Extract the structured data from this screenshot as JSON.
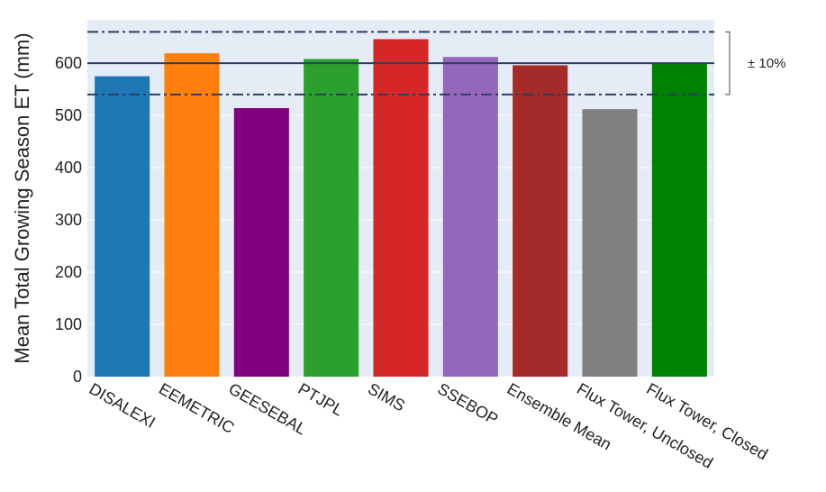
{
  "chart_data": {
    "type": "bar",
    "title": "",
    "xlabel": "",
    "ylabel": "Mean Total Growing Season ET (mm)",
    "categories": [
      "DISALEXI",
      "EEMETRIC",
      "GEESEBAL",
      "PTJPL",
      "SIMS",
      "SSEBOP",
      "Ensemble Mean",
      "Flux Tower, Unclosed",
      "Flux Tower, Closed"
    ],
    "values": [
      575,
      619,
      514,
      608,
      646,
      612,
      596,
      512,
      600
    ],
    "colors": [
      "#1f77b4",
      "#ff7f0e",
      "#800080",
      "#2ca02c",
      "#d62728",
      "#9467bd",
      "#a52a2a",
      "#808080",
      "#008000"
    ],
    "ylim": [
      0,
      683
    ],
    "yticks": [
      0,
      100,
      200,
      300,
      400,
      500,
      600
    ],
    "reference_line": 600,
    "band_upper": 660,
    "band_lower": 540,
    "band_label": "± 10%",
    "plot_background": "#e5ecf6",
    "grid": true
  }
}
